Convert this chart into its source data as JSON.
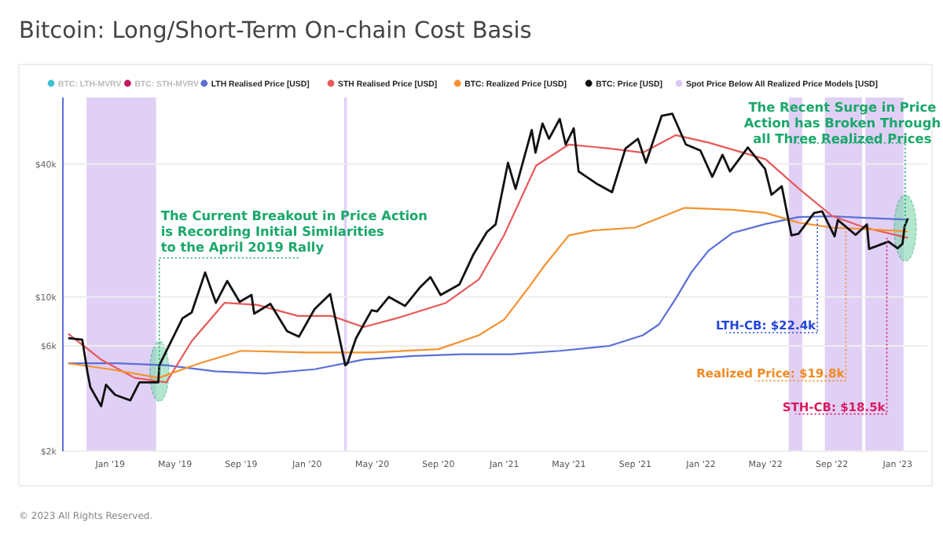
{
  "chart_data": {
    "type": "line",
    "title": "Bitcoin: Long/Short-Term On-chain Cost Basis",
    "log": "y",
    "grid": "y",
    "legend": "top",
    "line_style": "solid",
    "marker": "none",
    "xlim": [
      "2018-10-05",
      "2023-02-25"
    ],
    "ylim": [
      2000,
      80000
    ],
    "yticks": [
      {
        "value": 2000,
        "label": "$2k"
      },
      {
        "value": 6000,
        "label": "$6k"
      },
      {
        "value": 10000,
        "label": "$10k"
      },
      {
        "value": 40000,
        "label": "$40k"
      }
    ],
    "xticks": [
      {
        "value": "2019-01-01",
        "label": "Jan '19"
      },
      {
        "value": "2019-05-01",
        "label": "May '19"
      },
      {
        "value": "2019-09-01",
        "label": "Sep '19"
      },
      {
        "value": "2020-01-01",
        "label": "Jan '20"
      },
      {
        "value": "2020-05-01",
        "label": "May '20"
      },
      {
        "value": "2020-09-01",
        "label": "Sep '20"
      },
      {
        "value": "2021-01-01",
        "label": "Jan '21"
      },
      {
        "value": "2021-05-01",
        "label": "May '21"
      },
      {
        "value": "2021-09-01",
        "label": "Sep '21"
      },
      {
        "value": "2022-01-01",
        "label": "Jan '22"
      },
      {
        "value": "2022-05-01",
        "label": "May '22"
      },
      {
        "value": "2022-09-01",
        "label": "Sep '22"
      },
      {
        "value": "2023-01-01",
        "label": "Jan '23"
      }
    ],
    "series": [
      {
        "name": "BTC: LTH-MVRV",
        "color": "#3ec1d3"
      },
      {
        "name": "BTC: STH-MVRV",
        "color": "#c2185b"
      },
      {
        "name": "LTH Realised Price [USD]",
        "color": "#5b6fd6",
        "x": [
          "2018-10-15",
          "2019-01-15",
          "2019-04-15",
          "2019-07-15",
          "2019-10-15",
          "2020-01-15",
          "2020-04-15",
          "2020-07-15",
          "2020-10-15",
          "2021-01-15",
          "2021-04-15",
          "2021-07-15",
          "2021-09-15",
          "2021-10-15",
          "2021-11-15",
          "2021-12-15",
          "2022-01-15",
          "2022-03-01",
          "2022-05-01",
          "2022-07-01",
          "2022-09-01",
          "2022-11-01",
          "2023-01-20"
        ],
        "values": [
          5000,
          5000,
          4900,
          4600,
          4500,
          4700,
          5200,
          5400,
          5500,
          5500,
          5700,
          6000,
          6700,
          7500,
          9800,
          13000,
          16200,
          19500,
          21400,
          23000,
          23200,
          22800,
          22400
        ]
      },
      {
        "name": "STH Realised Price [USD]",
        "color": "#e8595a",
        "x": [
          "2018-10-15",
          "2018-12-15",
          "2019-02-15",
          "2019-04-15",
          "2019-06-01",
          "2019-08-01",
          "2019-10-01",
          "2019-12-15",
          "2020-02-15",
          "2020-04-15",
          "2020-06-15",
          "2020-09-15",
          "2020-11-15",
          "2021-01-01",
          "2021-03-01",
          "2021-05-01",
          "2021-07-15",
          "2021-09-15",
          "2021-11-15",
          "2022-01-15",
          "2022-05-01",
          "2022-07-01",
          "2022-09-01",
          "2022-11-01",
          "2023-01-20"
        ],
        "values": [
          6800,
          5200,
          4300,
          4100,
          6300,
          9400,
          9200,
          8200,
          8200,
          7300,
          8000,
          9400,
          12000,
          19100,
          39300,
          49000,
          47000,
          45000,
          54000,
          50000,
          42000,
          31000,
          23300,
          20600,
          18500
        ]
      },
      {
        "name": "BTC: Realized Price [USD]",
        "color": "#f5922f",
        "x": [
          "2018-10-15",
          "2019-01-01",
          "2019-04-01",
          "2019-06-15",
          "2019-09-01",
          "2020-01-01",
          "2020-05-01",
          "2020-09-01",
          "2020-11-15",
          "2021-01-01",
          "2021-02-15",
          "2021-03-15",
          "2021-05-01",
          "2021-06-15",
          "2021-09-01",
          "2021-12-01",
          "2022-03-01",
          "2022-05-01",
          "2022-07-01",
          "2022-09-01",
          "2022-11-01",
          "2023-01-20"
        ],
        "values": [
          5000,
          4700,
          4300,
          5000,
          5700,
          5600,
          5600,
          5800,
          6700,
          7900,
          11000,
          13700,
          19000,
          20000,
          20600,
          25300,
          24800,
          24000,
          21700,
          20600,
          20300,
          19800
        ]
      },
      {
        "name": "BTC: Price [USD]",
        "color": "#111111",
        "x": [
          "2018-10-15",
          "2018-11-10",
          "2018-11-20",
          "2018-11-25",
          "2018-12-15",
          "2018-12-24",
          "2019-01-10",
          "2019-02-07",
          "2019-02-24",
          "2019-03-31",
          "2019-04-02",
          "2019-05-15",
          "2019-06-01",
          "2019-06-26",
          "2019-07-16",
          "2019-08-06",
          "2019-08-29",
          "2019-09-20",
          "2019-09-25",
          "2019-10-25",
          "2019-11-25",
          "2019-12-17",
          "2020-01-15",
          "2020-02-13",
          "2020-03-12",
          "2020-03-16",
          "2020-04-01",
          "2020-04-30",
          "2020-05-10",
          "2020-06-01",
          "2020-07-01",
          "2020-07-28",
          "2020-08-17",
          "2020-09-05",
          "2020-10-10",
          "2020-11-05",
          "2020-11-30",
          "2020-12-16",
          "2021-01-08",
          "2021-01-22",
          "2021-02-21",
          "2021-02-28",
          "2021-03-13",
          "2021-03-25",
          "2021-04-14",
          "2021-04-25",
          "2021-05-10",
          "2021-05-19",
          "2021-06-22",
          "2021-07-20",
          "2021-08-14",
          "2021-09-06",
          "2021-09-21",
          "2021-10-20",
          "2021-11-09",
          "2021-12-04",
          "2021-12-31",
          "2022-01-22",
          "2022-02-10",
          "2022-02-24",
          "2022-03-29",
          "2022-04-30",
          "2022-05-12",
          "2022-05-31",
          "2022-06-18",
          "2022-07-01",
          "2022-07-30",
          "2022-08-14",
          "2022-09-06",
          "2022-09-12",
          "2022-10-15",
          "2022-11-05",
          "2022-11-09",
          "2022-12-15",
          "2023-01-01",
          "2023-01-10",
          "2023-01-14",
          "2023-01-20"
        ],
        "values": [
          6500,
          6400,
          4500,
          3900,
          3200,
          4000,
          3600,
          3400,
          4100,
          4100,
          4900,
          8000,
          8500,
          12900,
          9400,
          11800,
          9500,
          10200,
          8400,
          9300,
          7000,
          6600,
          8800,
          10300,
          4900,
          5000,
          6500,
          8700,
          8600,
          10000,
          9100,
          11000,
          12300,
          10200,
          11400,
          15600,
          19700,
          21300,
          40500,
          30800,
          57000,
          45000,
          61000,
          52000,
          64000,
          49000,
          58000,
          37000,
          32500,
          29800,
          47000,
          52000,
          40500,
          66000,
          67500,
          49000,
          46000,
          35000,
          44000,
          37000,
          47500,
          38000,
          29000,
          31700,
          19000,
          19300,
          24000,
          24400,
          18800,
          22300,
          19100,
          21300,
          16500,
          17800,
          16600,
          17400,
          20900,
          22700
        ]
      }
    ],
    "bands": [
      {
        "axis": "x",
        "from": "2018-11-18",
        "to": "2019-03-27",
        "color": "#dcc8f5",
        "label": "Spot Price Below All Realized Price Models [USD]"
      },
      {
        "axis": "x",
        "from": "2020-03-10",
        "to": "2020-03-15",
        "color": "#dcc8f5"
      },
      {
        "axis": "x",
        "from": "2022-06-13",
        "to": "2022-07-08",
        "color": "#dcc8f5"
      },
      {
        "axis": "x",
        "from": "2022-08-19",
        "to": "2022-10-27",
        "color": "#dcc8f5"
      },
      {
        "axis": "x",
        "from": "2022-11-02",
        "to": "2023-01-12",
        "color": "#dcc8f5"
      }
    ],
    "annotations": [
      {
        "text": "The Current Breakout in Price Action\nis Recording Initial Similarities\nto the April 2019 Rally",
        "x": "2019-04-02",
        "y": 4600
      },
      {
        "text": "The Recent Surge in Price\nAction has Broken Through\nall Three Realized Prices",
        "x": "2023-01-15",
        "y": 20500
      },
      {
        "text": "LTH-CB: $22.4k",
        "x": "2022-08-05",
        "y": 22400
      },
      {
        "text": "Realized Price: $19.8k",
        "x": "2022-09-27",
        "y": 19800
      },
      {
        "text": "STH-CB: $18.5k",
        "x": "2022-12-12",
        "y": 18500
      },
      "© 2023 All Rights Reserved."
    ]
  }
}
